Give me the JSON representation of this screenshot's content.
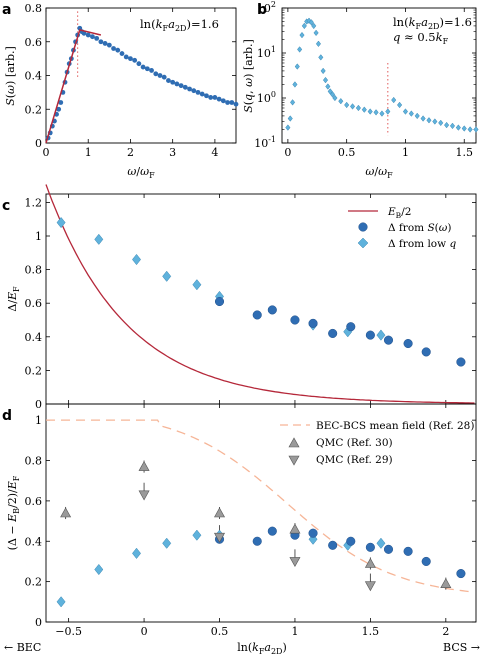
{
  "colors": {
    "dark_blue": "#2f6db3",
    "light_blue": "#5fb2dc",
    "red": "#b5283a",
    "peach": "#f6b597",
    "gray_tri": "#9a9a9a",
    "dotted": "#e05a5a"
  },
  "chart_data": [
    {
      "panel": "a",
      "type": "scatter",
      "annotation": "ln(k_Fa_2D)=1.6",
      "xlabel": "ω/ω_F",
      "ylabel": "S(ω) [arb.]",
      "xlim": [
        0,
        4.5
      ],
      "ylim": [
        0,
        0.8
      ],
      "xticks": [
        "0",
        "1",
        "2",
        "3",
        "4"
      ],
      "yticks": [
        "0",
        "0.2",
        "0.4",
        "0.6",
        "0.8"
      ],
      "points_x": [
        0.05,
        0.1,
        0.15,
        0.2,
        0.25,
        0.3,
        0.35,
        0.4,
        0.45,
        0.5,
        0.55,
        0.6,
        0.65,
        0.7,
        0.75,
        0.8,
        0.85,
        0.9,
        1.0,
        1.1,
        1.2,
        1.3,
        1.4,
        1.5,
        1.6,
        1.7,
        1.8,
        1.9,
        2.0,
        2.1,
        2.2,
        2.3,
        2.4,
        2.5,
        2.6,
        2.7,
        2.8,
        2.9,
        3.0,
        3.1,
        3.2,
        3.3,
        3.4,
        3.5,
        3.6,
        3.7,
        3.8,
        3.9,
        4.0,
        4.1,
        4.2,
        4.3,
        4.4,
        4.5
      ],
      "points_y": [
        0.03,
        0.06,
        0.1,
        0.13,
        0.17,
        0.2,
        0.24,
        0.3,
        0.36,
        0.42,
        0.47,
        0.5,
        0.55,
        0.6,
        0.64,
        0.68,
        0.66,
        0.65,
        0.64,
        0.63,
        0.62,
        0.6,
        0.59,
        0.58,
        0.56,
        0.55,
        0.53,
        0.51,
        0.5,
        0.49,
        0.47,
        0.45,
        0.44,
        0.43,
        0.41,
        0.4,
        0.39,
        0.37,
        0.36,
        0.35,
        0.34,
        0.33,
        0.32,
        0.31,
        0.3,
        0.29,
        0.28,
        0.27,
        0.27,
        0.26,
        0.25,
        0.24,
        0.24,
        0.23
      ],
      "fit_x": [
        0,
        0.8,
        1.3
      ],
      "fit_y": [
        0,
        0.67,
        0.64
      ],
      "dotted_x": 0.75
    },
    {
      "panel": "b",
      "type": "scatter",
      "annotation_line1": "ln(k_Fa_2D)=1.6",
      "annotation_line2": "q ≈ 0.5k_F",
      "xlabel": "ω/ω_F",
      "ylabel": "S(q,ω) [arb.]",
      "xlim": [
        -0.05,
        1.6
      ],
      "yscale": "log",
      "ylim": [
        0.1,
        100
      ],
      "xticks": [
        "0",
        "0.5",
        "1",
        "1.5"
      ],
      "yticks": [
        "10^-1",
        "10^0",
        "10^1",
        "10^2"
      ],
      "points_x": [
        0.0,
        0.02,
        0.04,
        0.06,
        0.08,
        0.1,
        0.12,
        0.14,
        0.16,
        0.18,
        0.2,
        0.22,
        0.24,
        0.26,
        0.28,
        0.3,
        0.32,
        0.34,
        0.36,
        0.38,
        0.4,
        0.45,
        0.5,
        0.55,
        0.6,
        0.65,
        0.7,
        0.75,
        0.8,
        0.85,
        0.9,
        0.95,
        1.0,
        1.05,
        1.1,
        1.15,
        1.2,
        1.25,
        1.3,
        1.35,
        1.4,
        1.45,
        1.5,
        1.55,
        1.6
      ],
      "points_y": [
        0.22,
        0.35,
        0.8,
        2,
        5,
        12,
        25,
        40,
        50,
        52,
        48,
        40,
        28,
        16,
        8,
        4,
        2.5,
        1.8,
        1.4,
        1.2,
        1.0,
        0.85,
        0.7,
        0.65,
        0.6,
        0.55,
        0.5,
        0.48,
        0.45,
        0.5,
        0.9,
        0.7,
        0.5,
        0.45,
        0.4,
        0.35,
        0.32,
        0.3,
        0.28,
        0.25,
        0.24,
        0.22,
        0.21,
        0.2,
        0.2
      ],
      "dotted_x": 0.85
    },
    {
      "panel": "c",
      "type": "scatter",
      "ylabel": "Δ/E_F",
      "xlim": [
        -0.65,
        2.2
      ],
      "ylim": [
        0,
        1.25
      ],
      "yticks": [
        "0",
        "0.2",
        "0.4",
        "0.6",
        "0.8",
        "1",
        "1.2"
      ],
      "legend": [
        "E_B/2",
        "Δ from S(ω)",
        "Δ from low q"
      ],
      "legend_position": "top-right",
      "curve_label": "E_B/2",
      "series": [
        {
          "name": "Δ from S(ω)",
          "x": [
            0.5,
            0.75,
            0.85,
            1.0,
            1.12,
            1.25,
            1.37,
            1.5,
            1.62,
            1.75,
            1.87,
            2.1
          ],
          "y": [
            0.61,
            0.53,
            0.56,
            0.5,
            0.48,
            0.42,
            0.46,
            0.41,
            0.38,
            0.36,
            0.31,
            0.25
          ]
        },
        {
          "name": "Δ from low q",
          "x": [
            -0.55,
            -0.3,
            -0.05,
            0.15,
            0.35,
            0.5,
            1.12,
            1.35,
            1.57
          ],
          "y": [
            1.08,
            0.98,
            0.86,
            0.76,
            0.71,
            0.64,
            0.47,
            0.43,
            0.41
          ]
        }
      ]
    },
    {
      "panel": "d",
      "type": "scatter",
      "xlabel": "ln(k_Fa_2D)",
      "ylabel": "(Δ − E_B/2)/E_F",
      "xlim": [
        -0.65,
        2.2
      ],
      "ylim": [
        0,
        1.08
      ],
      "xticks": [
        "−0.5",
        "0",
        "0.5",
        "1",
        "1.5",
        "2"
      ],
      "yticks": [
        "0",
        "0.2",
        "0.4",
        "0.6",
        "0.8",
        "1"
      ],
      "left_arrow_label": "← BEC",
      "right_arrow_label": "BCS →",
      "legend": [
        "BEC-BCS mean field (Ref. 28)",
        "QMC (Ref. 30)",
        "QMC (Ref. 29)"
      ],
      "legend_position": "top-right",
      "series": [
        {
          "name": "dark",
          "x": [
            0.5,
            0.75,
            0.85,
            1.0,
            1.12,
            1.25,
            1.37,
            1.5,
            1.62,
            1.75,
            1.87,
            2.1
          ],
          "y": [
            0.41,
            0.4,
            0.45,
            0.43,
            0.44,
            0.38,
            0.4,
            0.37,
            0.36,
            0.35,
            0.3,
            0.24
          ]
        },
        {
          "name": "light",
          "x": [
            -0.55,
            -0.3,
            -0.05,
            0.15,
            0.35,
            0.5,
            1.12,
            1.35,
            1.57
          ],
          "y": [
            0.1,
            0.26,
            0.34,
            0.39,
            0.43,
            0.43,
            0.41,
            0.38,
            0.39
          ]
        },
        {
          "name": "QMC (Ref. 30)",
          "x": [
            -0.52,
            0.0,
            0.5,
            1.0,
            1.5,
            2.0
          ],
          "y": [
            0.54,
            0.77,
            0.54,
            0.46,
            0.29,
            0.19
          ]
        },
        {
          "name": "QMC (Ref. 29)",
          "x": [
            0.0,
            0.5,
            1.0,
            1.5
          ],
          "y": [
            0.63,
            0.42,
            0.3,
            0.18
          ]
        }
      ]
    }
  ]
}
